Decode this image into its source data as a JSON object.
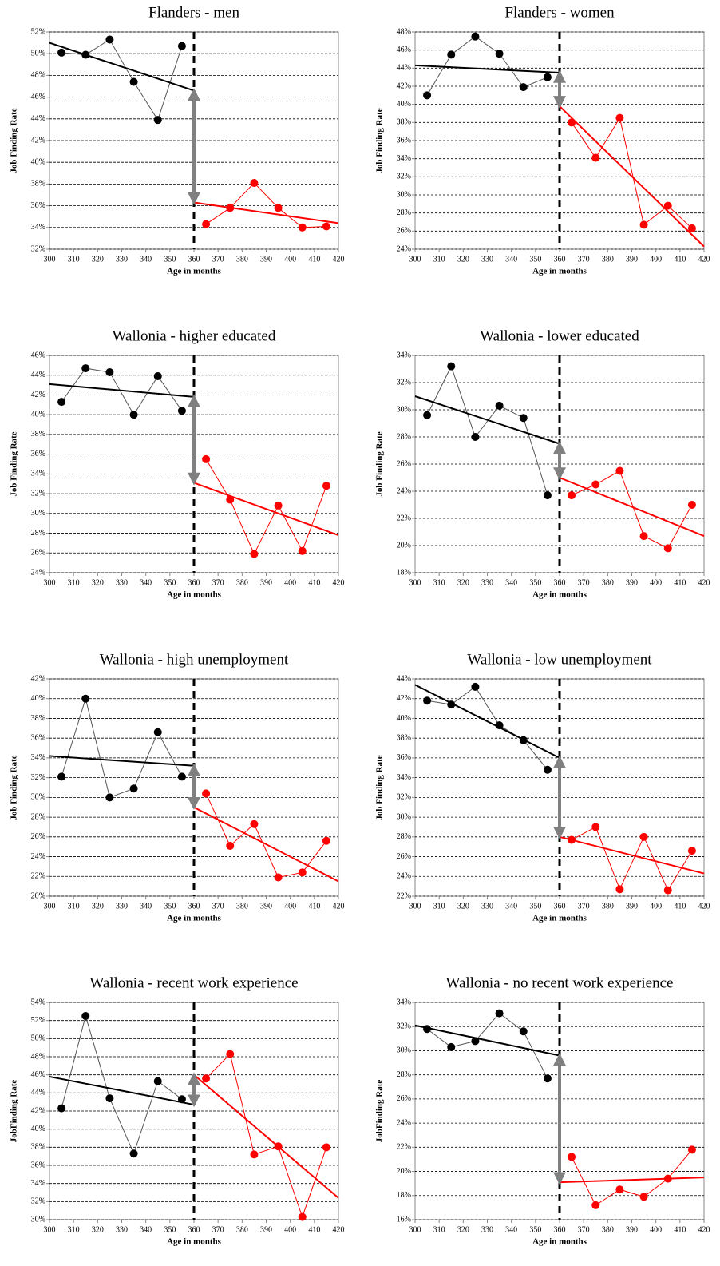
{
  "chart_data": [
    {
      "type": "line",
      "title": "Flanders - men",
      "xlabel": "Age in months",
      "ylabel": "Job Finding Rate",
      "xlim": [
        300,
        420
      ],
      "xticks": [
        300,
        310,
        320,
        330,
        340,
        350,
        360,
        370,
        380,
        390,
        400,
        410,
        420
      ],
      "ylim": [
        32,
        52
      ],
      "yticks": [
        {
          "value": 32,
          "label": "32%"
        },
        {
          "value": 34,
          "label": "34%"
        },
        {
          "value": 36,
          "label": "36%"
        },
        {
          "value": 38,
          "label": "38%"
        },
        {
          "value": 40,
          "label": "40%"
        },
        {
          "value": 42,
          "label": "42%"
        },
        {
          "value": 44,
          "label": "44%"
        },
        {
          "value": 46,
          "label": "46%"
        },
        {
          "value": 48,
          "label": "48%"
        },
        {
          "value": 50,
          "label": "50%"
        },
        {
          "value": 52,
          "label": "52%"
        }
      ],
      "grid": true,
      "vline": 360,
      "series": [
        {
          "color": "#000000",
          "markers": true,
          "x": [
            305,
            315,
            325,
            335,
            345,
            355
          ],
          "values": [
            50.1,
            49.9,
            51.3,
            47.4,
            43.9,
            50.7
          ]
        },
        {
          "color": "#ff0000",
          "markers": true,
          "x": [
            365,
            375,
            385,
            395,
            405,
            415
          ],
          "values": [
            34.3,
            35.8,
            38.1,
            35.8,
            34.0,
            34.1
          ]
        },
        {
          "color": "#000000",
          "markers": false,
          "x": [
            300,
            360
          ],
          "values": [
            51.0,
            46.6
          ]
        },
        {
          "color": "#ff0000",
          "markers": false,
          "x": [
            360,
            420
          ],
          "values": [
            36.3,
            34.4
          ]
        }
      ]
    },
    {
      "type": "line",
      "title": "Flanders - women",
      "xlabel": "Age in months",
      "ylabel": "Job Finding Rate",
      "xlim": [
        300,
        420
      ],
      "xticks": [
        300,
        310,
        320,
        330,
        340,
        350,
        360,
        370,
        380,
        390,
        400,
        410,
        420
      ],
      "ylim": [
        24,
        48
      ],
      "yticks": [
        {
          "value": 24,
          "label": "24%"
        },
        {
          "value": 26,
          "label": "26%"
        },
        {
          "value": 28,
          "label": "28%"
        },
        {
          "value": 30,
          "label": "30%"
        },
        {
          "value": 32,
          "label": "32%"
        },
        {
          "value": 34,
          "label": "34%"
        },
        {
          "value": 36,
          "label": "36%"
        },
        {
          "value": 38,
          "label": "38%"
        },
        {
          "value": 40,
          "label": "40%"
        },
        {
          "value": 42,
          "label": "42%"
        },
        {
          "value": 44,
          "label": "44%"
        },
        {
          "value": 46,
          "label": "46%"
        },
        {
          "value": 48,
          "label": "48%"
        }
      ],
      "grid": true,
      "vline": 360,
      "series": [
        {
          "color": "#000000",
          "markers": true,
          "x": [
            305,
            315,
            325,
            335,
            345,
            355
          ],
          "values": [
            41.0,
            45.5,
            47.5,
            45.6,
            41.9,
            43.0
          ]
        },
        {
          "color": "#ff0000",
          "markers": true,
          "x": [
            365,
            375,
            385,
            395,
            405,
            415
          ],
          "values": [
            38.0,
            34.1,
            38.5,
            26.7,
            28.8,
            26.3
          ]
        },
        {
          "color": "#000000",
          "markers": false,
          "x": [
            300,
            360
          ],
          "values": [
            44.3,
            43.5
          ]
        },
        {
          "color": "#ff0000",
          "markers": false,
          "x": [
            360,
            420
          ],
          "values": [
            39.8,
            24.3
          ]
        }
      ]
    },
    {
      "type": "line",
      "title": "Wallonia - higher educated",
      "xlabel": "Age in months",
      "ylabel": "Job Finding Rate",
      "xlim": [
        300,
        420
      ],
      "xticks": [
        300,
        310,
        320,
        330,
        340,
        350,
        360,
        370,
        380,
        390,
        400,
        410,
        420
      ],
      "ylim": [
        24,
        46
      ],
      "yticks": [
        {
          "value": 24,
          "label": "24%"
        },
        {
          "value": 26,
          "label": "26%"
        },
        {
          "value": 28,
          "label": "28%"
        },
        {
          "value": 30,
          "label": "30%"
        },
        {
          "value": 32,
          "label": "32%"
        },
        {
          "value": 34,
          "label": "34%"
        },
        {
          "value": 36,
          "label": "36%"
        },
        {
          "value": 38,
          "label": "38%"
        },
        {
          "value": 40,
          "label": "40%"
        },
        {
          "value": 42,
          "label": "42%"
        },
        {
          "value": 44,
          "label": "44%"
        },
        {
          "value": 46,
          "label": "46%"
        }
      ],
      "grid": true,
      "vline": 360,
      "series": [
        {
          "color": "#000000",
          "markers": true,
          "x": [
            305,
            315,
            325,
            335,
            345,
            355
          ],
          "values": [
            41.3,
            44.7,
            44.3,
            40.0,
            43.9,
            40.4
          ]
        },
        {
          "color": "#ff0000",
          "markers": true,
          "x": [
            365,
            375,
            385,
            395,
            405,
            415
          ],
          "values": [
            35.5,
            31.4,
            25.9,
            30.8,
            26.2,
            32.8
          ]
        },
        {
          "color": "#000000",
          "markers": false,
          "x": [
            300,
            360
          ],
          "values": [
            43.1,
            41.8
          ]
        },
        {
          "color": "#ff0000",
          "markers": false,
          "x": [
            360,
            420
          ],
          "values": [
            33.1,
            27.8
          ]
        }
      ]
    },
    {
      "type": "line",
      "title": "Wallonia - lower educated",
      "xlabel": "Age in months",
      "ylabel": "Job Finding Rate",
      "xlim": [
        300,
        420
      ],
      "xticks": [
        300,
        310,
        320,
        330,
        340,
        350,
        360,
        370,
        380,
        390,
        400,
        410,
        420
      ],
      "ylim": [
        18,
        34
      ],
      "yticks": [
        {
          "value": 18,
          "label": "18%"
        },
        {
          "value": 20,
          "label": "20%"
        },
        {
          "value": 22,
          "label": "22%"
        },
        {
          "value": 24,
          "label": "24%"
        },
        {
          "value": 26,
          "label": "26%"
        },
        {
          "value": 28,
          "label": "28%"
        },
        {
          "value": 30,
          "label": "30%"
        },
        {
          "value": 32,
          "label": "32%"
        },
        {
          "value": 34,
          "label": "34%"
        }
      ],
      "grid": true,
      "vline": 360,
      "series": [
        {
          "color": "#000000",
          "markers": true,
          "x": [
            305,
            315,
            325,
            335,
            345,
            355
          ],
          "values": [
            29.6,
            33.2,
            28.0,
            30.3,
            29.4,
            23.7
          ]
        },
        {
          "color": "#ff0000",
          "markers": true,
          "x": [
            365,
            375,
            385,
            395,
            405,
            415
          ],
          "values": [
            23.7,
            24.5,
            25.5,
            20.7,
            19.8,
            23.0
          ]
        },
        {
          "color": "#000000",
          "markers": false,
          "x": [
            300,
            360
          ],
          "values": [
            31.0,
            27.5
          ]
        },
        {
          "color": "#ff0000",
          "markers": false,
          "x": [
            360,
            420
          ],
          "values": [
            25.0,
            20.7
          ]
        }
      ]
    },
    {
      "type": "line",
      "title": "Wallonia - high unemployment",
      "xlabel": "Age in months",
      "ylabel": "Job Finding Rate",
      "xlim": [
        300,
        420
      ],
      "xticks": [
        300,
        310,
        320,
        330,
        340,
        350,
        360,
        370,
        380,
        390,
        400,
        410,
        420
      ],
      "ylim": [
        20,
        42
      ],
      "yticks": [
        {
          "value": 20,
          "label": "20%"
        },
        {
          "value": 22,
          "label": "22%"
        },
        {
          "value": 24,
          "label": "24%"
        },
        {
          "value": 26,
          "label": "26%"
        },
        {
          "value": 28,
          "label": "28%"
        },
        {
          "value": 30,
          "label": "30%"
        },
        {
          "value": 32,
          "label": "32%"
        },
        {
          "value": 34,
          "label": "34%"
        },
        {
          "value": 36,
          "label": "36%"
        },
        {
          "value": 38,
          "label": "38%"
        },
        {
          "value": 40,
          "label": "40%"
        },
        {
          "value": 42,
          "label": "42%"
        }
      ],
      "grid": true,
      "vline": 360,
      "series": [
        {
          "color": "#000000",
          "markers": true,
          "x": [
            305,
            315,
            325,
            335,
            345,
            355
          ],
          "values": [
            32.1,
            40.0,
            30.0,
            30.9,
            36.6,
            32.1
          ]
        },
        {
          "color": "#ff0000",
          "markers": true,
          "x": [
            365,
            375,
            385,
            395,
            405,
            415
          ],
          "values": [
            30.4,
            25.1,
            27.3,
            21.9,
            22.4,
            25.6
          ]
        },
        {
          "color": "#000000",
          "markers": false,
          "x": [
            300,
            360
          ],
          "values": [
            34.2,
            33.2
          ]
        },
        {
          "color": "#ff0000",
          "markers": false,
          "x": [
            360,
            420
          ],
          "values": [
            29.0,
            21.5
          ]
        }
      ]
    },
    {
      "type": "line",
      "title": "Wallonia - low unemployment",
      "xlabel": "Age in months",
      "ylabel": "Job Finding Rate",
      "xlim": [
        300,
        420
      ],
      "xticks": [
        300,
        310,
        320,
        330,
        340,
        350,
        360,
        370,
        380,
        390,
        400,
        410,
        420
      ],
      "ylim": [
        22,
        44
      ],
      "yticks": [
        {
          "value": 22,
          "label": "22%"
        },
        {
          "value": 24,
          "label": "24%"
        },
        {
          "value": 26,
          "label": "26%"
        },
        {
          "value": 28,
          "label": "28%"
        },
        {
          "value": 30,
          "label": "30%"
        },
        {
          "value": 32,
          "label": "32%"
        },
        {
          "value": 34,
          "label": "34%"
        },
        {
          "value": 36,
          "label": "36%"
        },
        {
          "value": 38,
          "label": "38%"
        },
        {
          "value": 40,
          "label": "40%"
        },
        {
          "value": 42,
          "label": "42%"
        },
        {
          "value": 44,
          "label": "44%"
        }
      ],
      "grid": true,
      "vline": 360,
      "series": [
        {
          "color": "#000000",
          "markers": true,
          "x": [
            305,
            315,
            325,
            335,
            345,
            355
          ],
          "values": [
            41.8,
            41.4,
            43.2,
            39.3,
            37.8,
            34.8
          ]
        },
        {
          "color": "#ff0000",
          "markers": true,
          "x": [
            365,
            375,
            385,
            395,
            405,
            415
          ],
          "values": [
            27.7,
            29.0,
            22.7,
            28.0,
            22.6,
            26.6
          ]
        },
        {
          "color": "#000000",
          "markers": false,
          "x": [
            300,
            360
          ],
          "values": [
            43.4,
            36.0
          ]
        },
        {
          "color": "#ff0000",
          "markers": false,
          "x": [
            360,
            420
          ],
          "values": [
            28.0,
            24.3
          ]
        }
      ]
    },
    {
      "type": "line",
      "title": "Wallonia - recent work experience",
      "xlabel": "Age in months",
      "ylabel": "JobFinding Rate",
      "xlim": [
        300,
        420
      ],
      "xticks": [
        300,
        310,
        320,
        330,
        340,
        350,
        360,
        370,
        380,
        390,
        400,
        410,
        420
      ],
      "ylim": [
        30,
        54
      ],
      "yticks": [
        {
          "value": 30,
          "label": "30%"
        },
        {
          "value": 32,
          "label": "32%"
        },
        {
          "value": 34,
          "label": "34%"
        },
        {
          "value": 36,
          "label": "36%"
        },
        {
          "value": 38,
          "label": "38%"
        },
        {
          "value": 40,
          "label": "40%"
        },
        {
          "value": 42,
          "label": "42%"
        },
        {
          "value": 44,
          "label": "44%"
        },
        {
          "value": 46,
          "label": "46%"
        },
        {
          "value": 48,
          "label": "48%"
        },
        {
          "value": 50,
          "label": "50%"
        },
        {
          "value": 52,
          "label": "52%"
        },
        {
          "value": 54,
          "label": "54%"
        }
      ],
      "grid": true,
      "vline": 360,
      "series": [
        {
          "color": "#000000",
          "markers": true,
          "x": [
            305,
            315,
            325,
            335,
            345,
            355
          ],
          "values": [
            42.3,
            52.5,
            43.4,
            37.3,
            45.3,
            43.3
          ]
        },
        {
          "color": "#ff0000",
          "markers": true,
          "x": [
            365,
            375,
            385,
            395,
            405,
            415
          ],
          "values": [
            45.6,
            48.3,
            37.2,
            38.1,
            30.3,
            38.0
          ]
        },
        {
          "color": "#000000",
          "markers": false,
          "x": [
            300,
            360
          ],
          "values": [
            45.8,
            42.7
          ]
        },
        {
          "color": "#ff0000",
          "markers": false,
          "x": [
            360,
            420
          ],
          "values": [
            46.0,
            32.4
          ]
        }
      ]
    },
    {
      "type": "line",
      "title": "Wallonia - no recent work experience",
      "xlabel": "Age in months",
      "ylabel": "JobFinding Rate",
      "xlim": [
        300,
        420
      ],
      "xticks": [
        300,
        310,
        320,
        330,
        340,
        350,
        360,
        370,
        380,
        390,
        400,
        410,
        420
      ],
      "ylim": [
        16,
        34
      ],
      "yticks": [
        {
          "value": 16,
          "label": "16%"
        },
        {
          "value": 18,
          "label": "18%"
        },
        {
          "value": 20,
          "label": "20%"
        },
        {
          "value": 22,
          "label": "22%"
        },
        {
          "value": 24,
          "label": "24%"
        },
        {
          "value": 26,
          "label": "26%"
        },
        {
          "value": 28,
          "label": "28%"
        },
        {
          "value": 30,
          "label": "30%"
        },
        {
          "value": 32,
          "label": "32%"
        },
        {
          "value": 34,
          "label": "34%"
        }
      ],
      "grid": true,
      "vline": 360,
      "series": [
        {
          "color": "#000000",
          "markers": true,
          "x": [
            305,
            315,
            325,
            335,
            345,
            355
          ],
          "values": [
            31.8,
            30.3,
            30.8,
            33.1,
            31.6,
            27.7
          ]
        },
        {
          "color": "#ff0000",
          "markers": true,
          "x": [
            365,
            375,
            385,
            395,
            405,
            415
          ],
          "values": [
            21.2,
            17.2,
            18.5,
            17.9,
            19.4,
            21.8
          ]
        },
        {
          "color": "#000000",
          "markers": false,
          "x": [
            300,
            360
          ],
          "values": [
            32.1,
            29.6
          ]
        },
        {
          "color": "#ff0000",
          "markers": false,
          "x": [
            360,
            420
          ],
          "values": [
            19.1,
            19.5
          ]
        }
      ]
    }
  ]
}
